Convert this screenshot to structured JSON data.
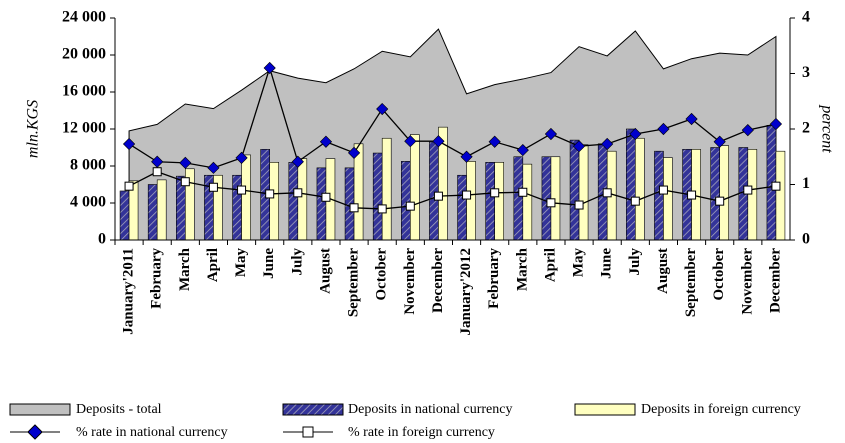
{
  "chart_data": {
    "type": "bar",
    "y_label": "mln.KGS",
    "y2_label": "percent",
    "categories": [
      "January'2011",
      "February",
      "March",
      "April",
      "May",
      "June",
      "July",
      "August",
      "September",
      "October",
      "November",
      "December",
      "January'2012",
      "February",
      "March",
      "April",
      "May",
      "June",
      "July",
      "August",
      "September",
      "October",
      "November",
      "December"
    ],
    "ylim": [
      0,
      24000
    ],
    "yticks": [
      0,
      {
        "value": 4000,
        "label": "4 000"
      },
      {
        "value": 8000,
        "label": "8 000"
      },
      {
        "value": 12000,
        "label": "12 000"
      },
      {
        "value": 16000,
        "label": "16 000"
      },
      {
        "value": 20000,
        "label": "20 000"
      },
      {
        "value": 24000,
        "label": "24 000"
      }
    ],
    "y2lim": [
      0,
      4
    ],
    "y2ticks": [
      0,
      1,
      2,
      3,
      4
    ],
    "series": [
      {
        "name": "Deposits - total",
        "type": "area",
        "color": "#c0c0c0",
        "values": [
          11800,
          12500,
          14700,
          14200,
          16200,
          18300,
          17500,
          17000,
          18500,
          20400,
          19800,
          22800,
          15800,
          16800,
          17400,
          18100,
          20900,
          19900,
          22600,
          18500,
          19600,
          20200,
          20000,
          22000
        ]
      },
      {
        "name": "Deposits in national currency",
        "type": "bar",
        "color": "#333399",
        "values": [
          5300,
          6000,
          6900,
          7000,
          7000,
          9800,
          8400,
          7800,
          7800,
          9400,
          8500,
          10600,
          7000,
          8400,
          9000,
          9000,
          10800,
          10400,
          12000,
          9600,
          9800,
          10000,
          10000,
          12400
        ]
      },
      {
        "name": "Deposits in foreign currency",
        "type": "bar",
        "color": "#ffffc0",
        "values": [
          6400,
          6500,
          7700,
          7000,
          9200,
          8400,
          8800,
          8800,
          10400,
          11000,
          11400,
          12200,
          8500,
          8400,
          8200,
          9000,
          10300,
          9600,
          11000,
          8900,
          9800,
          10200,
          9800,
          9600
        ]
      },
      {
        "name": "% rate in national currency",
        "type": "line",
        "axis": "y2",
        "color": "#0000cc",
        "values": [
          1.73,
          1.41,
          1.39,
          1.3,
          1.48,
          3.1,
          1.41,
          1.77,
          1.57,
          2.36,
          1.78,
          1.78,
          1.5,
          1.77,
          1.62,
          1.91,
          1.69,
          1.73,
          1.91,
          2.0,
          2.18,
          1.77,
          1.98,
          2.09
        ]
      },
      {
        "name": "% rate in foreign currency",
        "type": "line",
        "axis": "y2",
        "color": "#ffffff",
        "values": [
          0.97,
          1.23,
          1.05,
          0.95,
          0.9,
          0.83,
          0.85,
          0.77,
          0.58,
          0.56,
          0.61,
          0.79,
          0.81,
          0.85,
          0.86,
          0.67,
          0.63,
          0.85,
          0.7,
          0.9,
          0.81,
          0.7,
          0.9,
          0.97
        ]
      }
    ]
  }
}
